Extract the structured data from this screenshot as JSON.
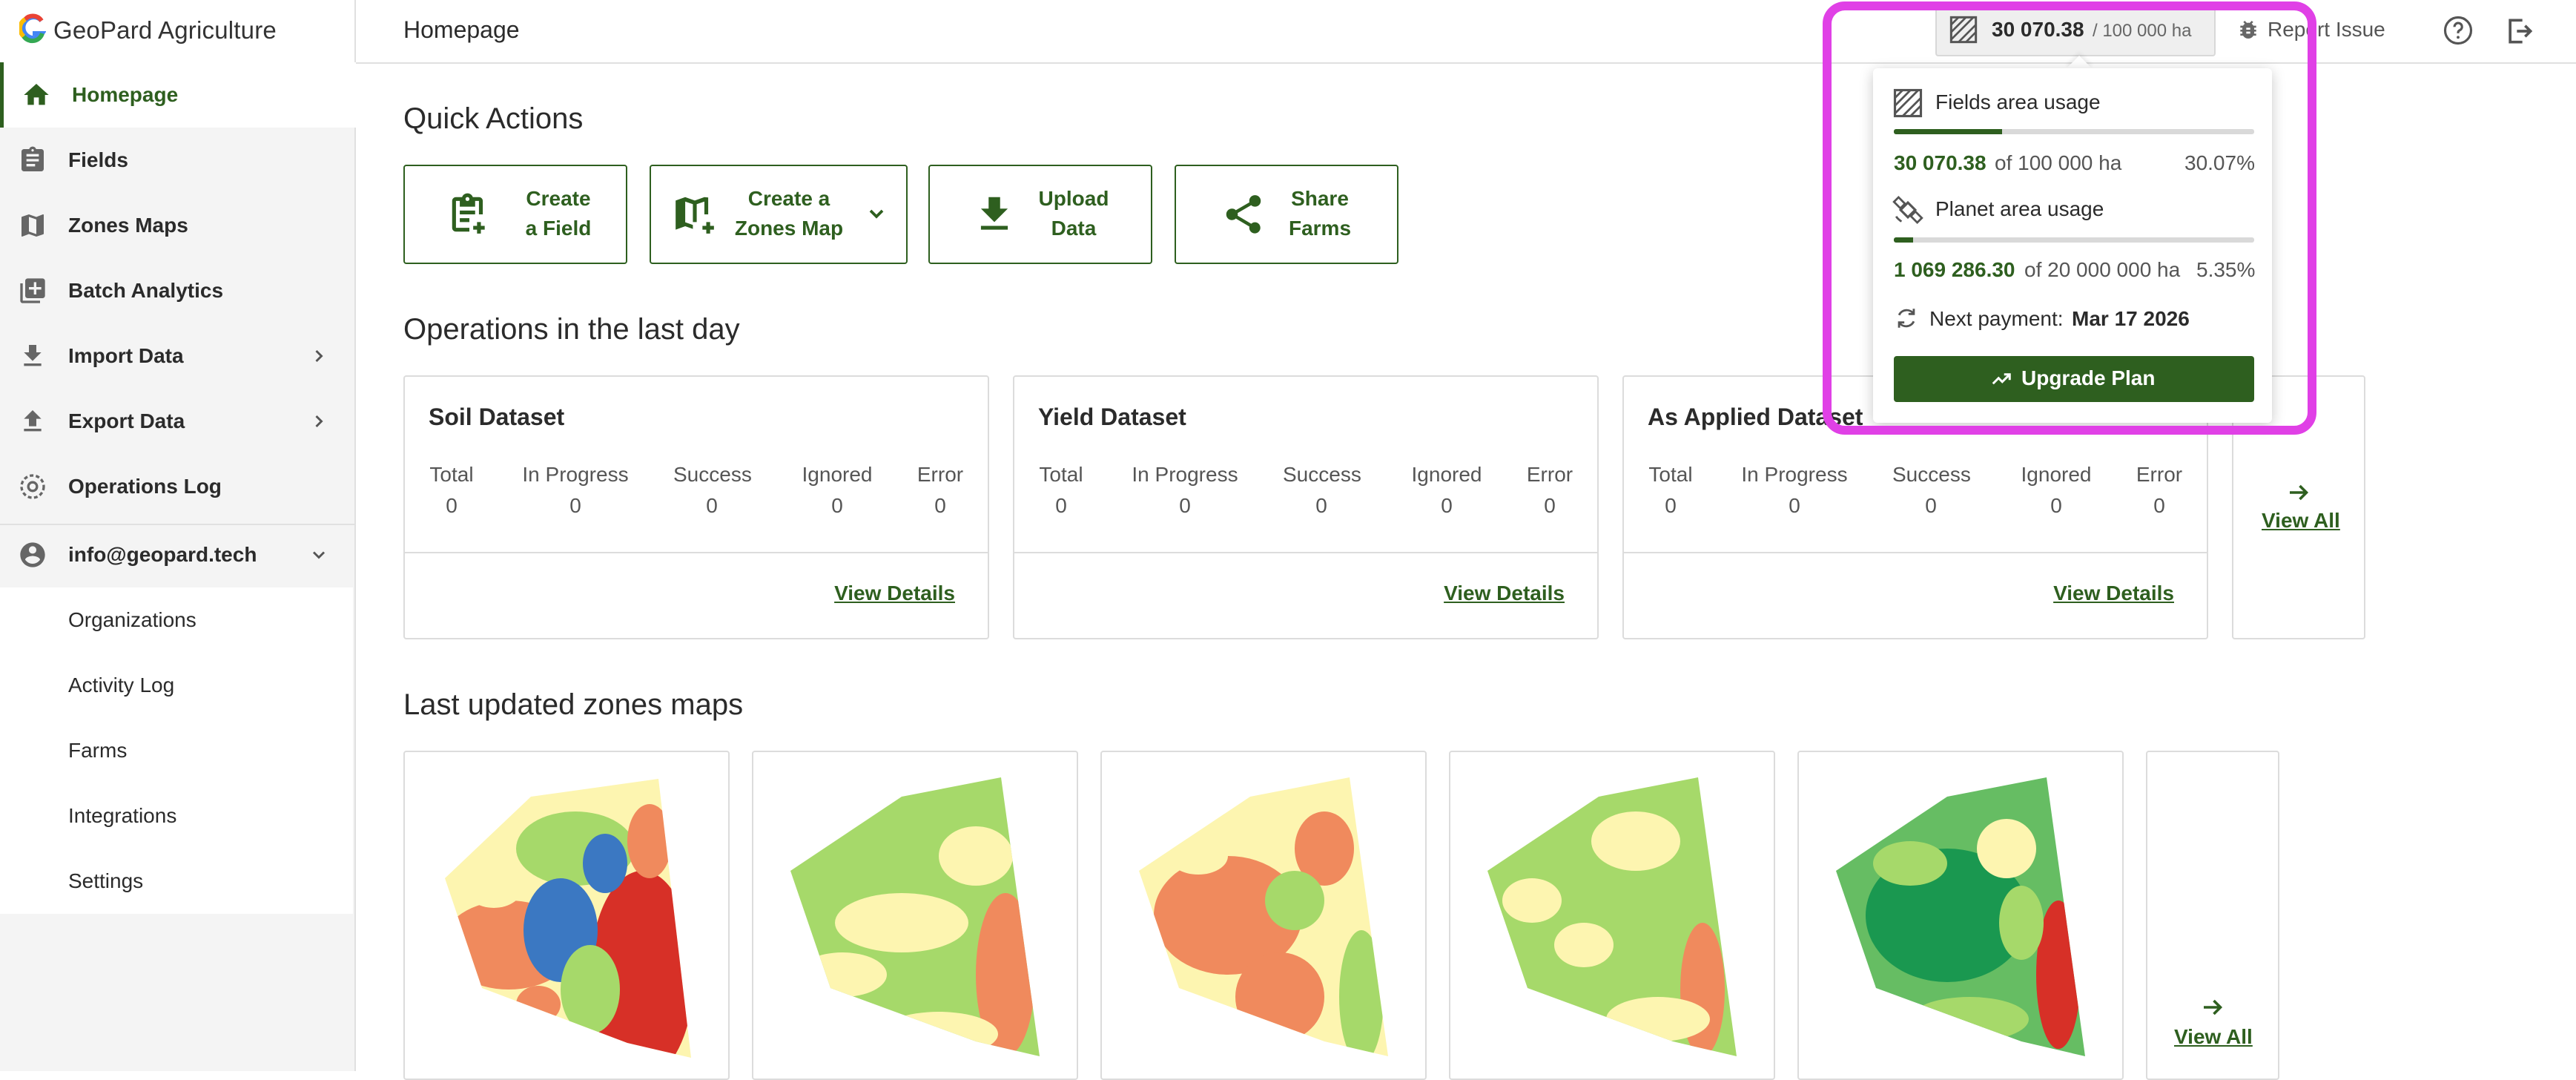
{
  "brand": {
    "name": "GeoPard Agriculture"
  },
  "sidebar": {
    "items": [
      {
        "label": "Homepage"
      },
      {
        "label": "Fields"
      },
      {
        "label": "Zones Maps"
      },
      {
        "label": "Batch Analytics"
      },
      {
        "label": "Import Data"
      },
      {
        "label": "Export Data"
      },
      {
        "label": "Operations Log"
      },
      {
        "label": "info@geopard.tech"
      }
    ],
    "sub_items": [
      {
        "label": "Organizations"
      },
      {
        "label": "Activity Log"
      },
      {
        "label": "Farms"
      },
      {
        "label": "Integrations"
      },
      {
        "label": "Settings"
      }
    ]
  },
  "header": {
    "title": "Homepage",
    "area_used": "30 070.38",
    "area_limit": "/ 100 000 ha",
    "report_issue": "Report Issue"
  },
  "quick_actions": {
    "title": "Quick Actions",
    "buttons": [
      {
        "line1": "Create",
        "line2": "a Field"
      },
      {
        "line1": "Create a",
        "line2": "Zones Map"
      },
      {
        "line1": "Upload",
        "line2": "Data"
      },
      {
        "line1": "Share",
        "line2": "Farms"
      }
    ]
  },
  "operations": {
    "title": "Operations in the last day",
    "stat_labels": [
      "Total",
      "In Progress",
      "Success",
      "Ignored",
      "Error"
    ],
    "cards": [
      {
        "title": "Soil Dataset",
        "values": [
          "0",
          "0",
          "0",
          "0",
          "0"
        ],
        "link": "View Details"
      },
      {
        "title": "Yield Dataset",
        "values": [
          "0",
          "0",
          "0",
          "0",
          "0"
        ],
        "link": "View Details"
      },
      {
        "title": "As Applied Dataset",
        "values": [
          "0",
          "0",
          "0",
          "0",
          "0"
        ],
        "link": "View Details"
      }
    ],
    "view_all": "View All"
  },
  "zones": {
    "title": "Last updated zones maps",
    "view_all": "View All"
  },
  "popover": {
    "fields_title": "Fields area usage",
    "fields_used": "30 070.38",
    "fields_of": "of 100 000 ha",
    "fields_pct": "30.07%",
    "fields_fraction": 0.3007,
    "planet_title": "Planet area usage",
    "planet_used": "1 069 286.30",
    "planet_of": "of 20 000 000 ha",
    "planet_pct": "5.35%",
    "planet_fraction": 0.0535,
    "next_payment_label": "Next payment:",
    "next_payment_date": "Mar 17 2026",
    "upgrade_label": "Upgrade Plan"
  },
  "colors": {
    "accent": "#2e5f1f",
    "highlight": "#e040e6",
    "zone_palette": [
      "#d73027",
      "#f08a5d",
      "#fdf5b0",
      "#a6d96a",
      "#66bd63",
      "#1a9850",
      "#3b78c2"
    ]
  }
}
